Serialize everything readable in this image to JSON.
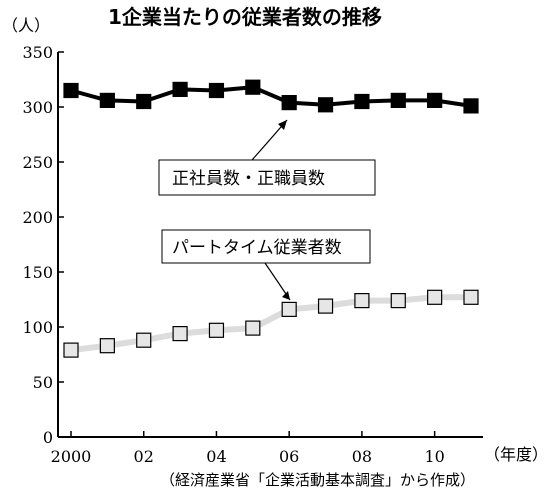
{
  "chart_data": {
    "type": "line",
    "title": "1企業当たりの従業者数の推移",
    "y_unit": "（人）",
    "x_unit": "（年度）",
    "source": "（経済産業省「企業活動基本調査」から作成）",
    "x": [
      2000,
      2001,
      2002,
      2003,
      2004,
      2005,
      2006,
      2007,
      2008,
      2009,
      2010,
      2011
    ],
    "x_tick_labels": [
      "2000",
      "02",
      "04",
      "06",
      "08",
      "10"
    ],
    "x_tick_values": [
      2000,
      2002,
      2004,
      2006,
      2008,
      2010
    ],
    "ylim": [
      0,
      350
    ],
    "y_ticks": [
      0,
      50,
      100,
      150,
      200,
      250,
      300,
      350
    ],
    "grid": false,
    "series": [
      {
        "name": "正社員数・正職員数",
        "values": [
          315,
          306,
          305,
          316,
          315,
          318,
          304,
          302,
          305,
          306,
          306,
          301
        ],
        "line_color": "#000000",
        "marker_fill": "#000000"
      },
      {
        "name": "パートタイム従業者数",
        "values": [
          79,
          83,
          88,
          94,
          97,
          99,
          116,
          119,
          124,
          124,
          127,
          127
        ],
        "line_color": "#dcdcdc",
        "marker_fill": "#e6e6e6"
      }
    ]
  }
}
